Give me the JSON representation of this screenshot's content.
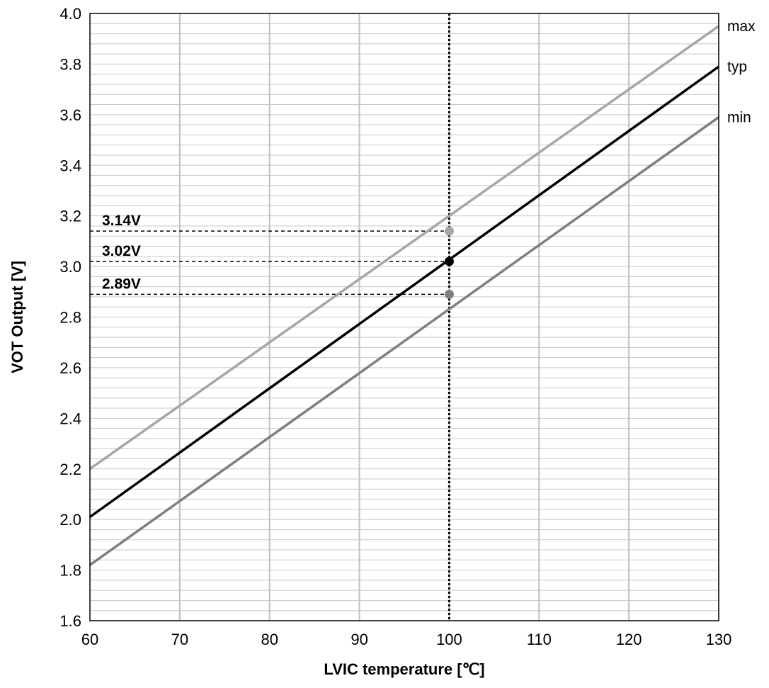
{
  "chart_data": {
    "type": "line",
    "title": "",
    "xlabel": "LVIC temperature [℃]",
    "ylabel": "VOT Output [V]",
    "xlim": [
      60,
      130
    ],
    "ylim": [
      1.6,
      4.0
    ],
    "x_ticks": [
      60,
      70,
      80,
      90,
      100,
      110,
      120,
      130
    ],
    "x_tick_labels": [
      "60",
      "70",
      "80",
      "90",
      "100",
      "110",
      "120",
      "130"
    ],
    "y_ticks": [
      1.6,
      1.8,
      2.0,
      2.2,
      2.4,
      2.6,
      2.8,
      3.0,
      3.2,
      3.4,
      3.6,
      3.8,
      4.0
    ],
    "y_tick_labels": [
      "1.6",
      "1.8",
      "2.0",
      "2.2",
      "2.4",
      "2.6",
      "2.8",
      "3.0",
      "3.2",
      "3.4",
      "3.6",
      "3.8",
      "4.0"
    ],
    "grid": true,
    "x_grid_step": 10,
    "y_grid_step": 0.04,
    "series": [
      {
        "name": "max",
        "color": "#a6a6a6",
        "x": [
          60,
          130
        ],
        "y": [
          2.2,
          3.95
        ]
      },
      {
        "name": "typ",
        "color": "#000000",
        "x": [
          60,
          130
        ],
        "y": [
          2.01,
          3.79
        ]
      },
      {
        "name": "min",
        "color": "#7f7f7f",
        "x": [
          60,
          130
        ],
        "y": [
          1.82,
          3.59
        ]
      }
    ],
    "reference_x": 100,
    "markers": [
      {
        "series": "max",
        "x": 100,
        "y": 3.14,
        "color": "#a6a6a6",
        "label": "3.14V"
      },
      {
        "series": "typ",
        "x": 100,
        "y": 3.02,
        "color": "#000000",
        "label": "3.02V"
      },
      {
        "series": "min",
        "x": 100,
        "y": 2.89,
        "color": "#7f7f7f",
        "label": "2.89V"
      }
    ]
  }
}
